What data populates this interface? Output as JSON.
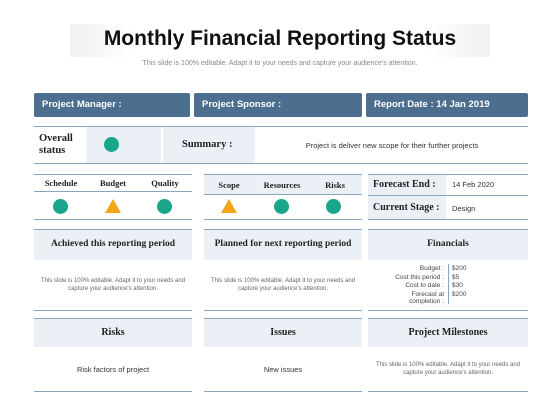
{
  "header": {
    "title": "Monthly Financial Reporting Status",
    "subtitle": "This slide is 100% editable. Adapt it to your needs and capture your audience's attention."
  },
  "bars": {
    "manager": "Project Manager :",
    "sponsor": "Project Sponsor :",
    "report_date": "Report Date : 14 Jan 2019"
  },
  "overall": {
    "label_line1": "Overall",
    "label_line2": "status",
    "status": "green"
  },
  "summary": {
    "label": "Summary :",
    "text": "Project is deliver  new scope for their further projects"
  },
  "group1": {
    "headers": [
      "Schedule",
      "Budget",
      "Quality"
    ],
    "statuses": [
      "green",
      "amber",
      "green"
    ]
  },
  "group2": {
    "headers": [
      "Scope",
      "Resources",
      "Risks"
    ],
    "statuses": [
      "amber",
      "green",
      "green"
    ]
  },
  "forecast": {
    "label": "Forecast End :",
    "value": "14 Feb 2020"
  },
  "stage": {
    "label": "Current Stage :",
    "value": "Design"
  },
  "sections": {
    "achieved": {
      "title": "Achieved this reporting period",
      "text": "This slide is 100% editable. Adapt it to your needs and capture your audience's attention."
    },
    "planned": {
      "title": "Planned for next reporting period",
      "text": "This slide is 100% editable. Adapt it to your needs and capture your audience's attention."
    },
    "financials": {
      "title": "Financials",
      "rows": [
        {
          "label": "Budget :",
          "value": "$200"
        },
        {
          "label": "Cost this period :",
          "value": "$5"
        },
        {
          "label": "Cost to date :",
          "value": "$30"
        },
        {
          "label": "Forecast at completion :",
          "value": "$200"
        }
      ]
    },
    "risks": {
      "title": "Risks",
      "text": "Risk factors of project"
    },
    "issues": {
      "title": "Issues",
      "text": "New issues"
    },
    "milestones": {
      "title": "Project Milestones",
      "text": "This slide is 100% editable. Adapt it to your needs and capture your audience's attention."
    }
  },
  "colors": {
    "header_bar": "#4c6f90",
    "green": "#1aa68a",
    "amber": "#f2a516",
    "shade": "#eaf0f5"
  }
}
